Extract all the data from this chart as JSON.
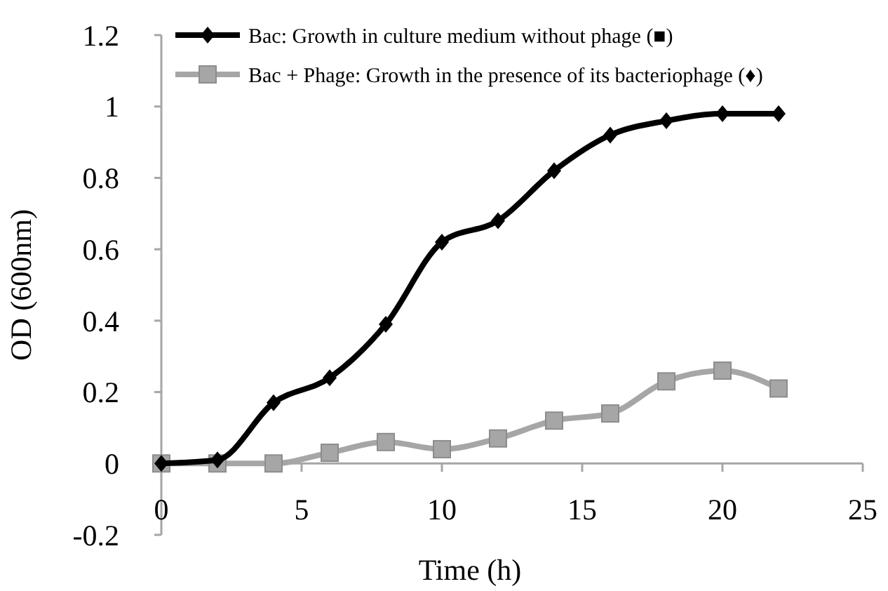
{
  "chart_data": {
    "type": "line",
    "xlabel": "Time (h)",
    "ylabel": "OD (600nm)",
    "x": [
      0,
      2,
      4,
      6,
      8,
      10,
      12,
      14,
      16,
      18,
      20,
      22
    ],
    "series": [
      {
        "name": "Bac: Growth in culture medium without phage (■)",
        "color": "#000000",
        "marker": "diamond",
        "values": [
          0,
          0.01,
          0.17,
          0.24,
          0.39,
          0.62,
          0.68,
          0.82,
          0.92,
          0.96,
          0.98,
          0.98
        ]
      },
      {
        "name": "Bac + Phage: Growth in the presence of its bacteriophage (♦)",
        "color": "#a6a6a6",
        "marker": "square",
        "values": [
          0,
          0,
          0,
          0.03,
          0.06,
          0.04,
          0.07,
          0.12,
          0.14,
          0.23,
          0.26,
          0.21
        ]
      }
    ],
    "xlim": [
      0,
      25
    ],
    "xticks": [
      0,
      5,
      10,
      15,
      20,
      25
    ],
    "ylim": [
      -0.2,
      1.2
    ],
    "yticks": [
      -0.2,
      0,
      0.2,
      0.4,
      0.6,
      0.8,
      1,
      1.2
    ],
    "grid": false,
    "legend": "top"
  }
}
